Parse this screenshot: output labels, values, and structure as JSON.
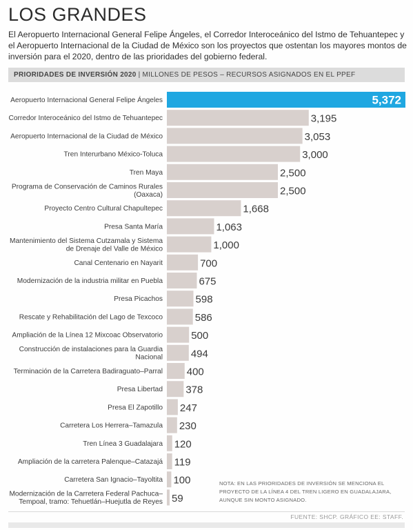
{
  "header": {
    "title": "LOS GRANDES",
    "description": "El Aeropuerto Internacional General Felipe Ángeles, el Corredor Interoceánico del Istmo de Tehuantepec y el Aeropuerto Internacional de la Ciudad de México son los proyectos que ostentan los mayores montos de inversión para el 2020, dentro de las prioridades del gobierno federal."
  },
  "subtitle": {
    "bold": "PRIORIDADES DE INVERSIÓN 2020",
    "separator": "|",
    "rest": "MILLONES DE PESOS – RECURSOS ASIGNADOS EN EL PPEF"
  },
  "colors": {
    "highlight": "#1fa7e1",
    "bar": "#d8d0cd",
    "label": "#3c3c3c"
  },
  "chart_data": {
    "type": "bar",
    "orientation": "horizontal",
    "title": "PRIORIDADES DE INVERSIÓN 2020",
    "subtitle": "MILLONES DE PESOS – RECURSOS ASIGNADOS EN EL PPEF",
    "categories": [
      "Aeropuerto Internacional General Felipe Ángeles",
      "Corredor Interoceánico del Istmo de Tehuantepec",
      "Aeropuerto Internacional de la Ciudad de México",
      "Tren Interurbano México-Toluca",
      "Tren Maya",
      "Programa de Conservación de Caminos Rurales (Oaxaca)",
      "Proyecto Centro Cultural Chapultepec",
      "Presa Santa María",
      "Mantenimiento del Sistema Cutzamala y Sistema de Drenaje del Valle de México",
      "Canal Centenario en Nayarit",
      "Modernización de la industria militar en Puebla",
      "Presa Picachos",
      "Rescate y Rehabilitación del Lago de Texcoco",
      "Ampliación de la Línea 12 Mixcoac Observatorio",
      "Construcción de instalaciones para la Guardia Nacional",
      "Terminación de la Carretera Badiraguato–Parral",
      "Presa Libertad",
      "Presa El Zapotillo",
      "Carretera Los Herrera–Tamazula",
      "Tren Línea 3 Guadalajara",
      "Ampliación de la carretera Palenque–Catazajá",
      "Carretera San Ignacio–Tayoltita",
      "Modernización de la Carretera Federal Pachuca–Tempoal, tramo: Tehuetlán–Huejutla de Reyes"
    ],
    "label_lines": [
      [
        "Aeropuerto Internacional General Felipe Ángeles"
      ],
      [
        "Corredor Interoceánico del Istmo de Tehuantepec"
      ],
      [
        "Aeropuerto Internacional de la Ciudad de México"
      ],
      [
        "Tren Interurbano México-Toluca"
      ],
      [
        "Tren Maya"
      ],
      [
        "Programa de Conservación de Caminos Rurales",
        "(Oaxaca)"
      ],
      [
        "Proyecto Centro Cultural Chapultepec"
      ],
      [
        "Presa Santa María"
      ],
      [
        "Mantenimiento del Sistema Cutzamala y Sistema",
        "de Drenaje del Valle de México"
      ],
      [
        "Canal Centenario en Nayarit"
      ],
      [
        "Modernización de la industria militar en Puebla"
      ],
      [
        "Presa Picachos"
      ],
      [
        "Rescate y Rehabilitación del Lago de Texcoco"
      ],
      [
        "Ampliación de la Línea 12 Mixcoac Observatorio"
      ],
      [
        "Construcción de instalaciones para la Guardia",
        "Nacional"
      ],
      [
        "Terminación de la Carretera Badiraguato–Parral"
      ],
      [
        "Presa Libertad"
      ],
      [
        "Presa El Zapotillo"
      ],
      [
        "Carretera Los Herrera–Tamazula"
      ],
      [
        "Tren Línea 3 Guadalajara"
      ],
      [
        "Ampliación de la carretera Palenque–Catazajá"
      ],
      [
        "Carretera San Ignacio–Tayoltita"
      ],
      [
        "Modernización de la Carretera Federal Pachuca–",
        "Tempoal, tramo: Tehuetlán–Huejutla de Reyes"
      ]
    ],
    "values": [
      5372,
      3195,
      3053,
      3000,
      2500,
      2500,
      1668,
      1063,
      1000,
      700,
      675,
      598,
      586,
      500,
      494,
      400,
      378,
      247,
      230,
      120,
      119,
      100,
      59
    ],
    "value_labels": [
      "5,372",
      "3,195",
      "3,053",
      "3,000",
      "2,500",
      "2,500",
      "1,668",
      "1,063",
      "1,000",
      "700",
      "675",
      "598",
      "586",
      "500",
      "494",
      "400",
      "378",
      "247",
      "230",
      "120",
      "119",
      "100",
      "59"
    ],
    "highlight_index": 0
  },
  "note": "NOTA: EN LAS PRIORIDADES DE INVERSIÓN SE MENCIONA EL PROYECTO DE LA LÍNEA 4 DEL TREN LIGERO EN GUADALAJARA, AUNQUE SIN MONTO ASIGNADO.",
  "source": "FUENTE: SHCP. GRÁFICO EE: STAFF."
}
